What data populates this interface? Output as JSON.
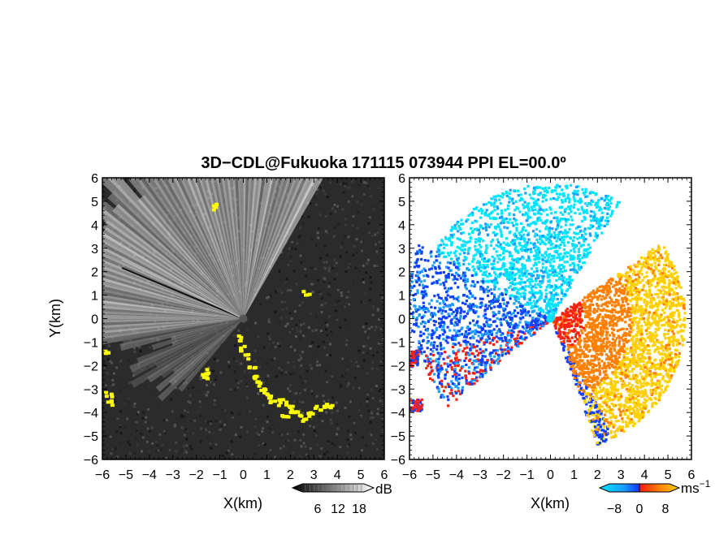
{
  "title": "3D−CDL@Fukuoka 171115 073944 PPI EL=00.0º",
  "chart_data": [
    {
      "type": "heatmap",
      "panel": "reflectivity",
      "xlabel": "X(km)",
      "ylabel": "Y(km)",
      "xlim": [
        -6,
        6
      ],
      "ylim": [
        -6,
        6
      ],
      "xticks": [
        "−6",
        "−5",
        "−4",
        "−3",
        "−2",
        "−1",
        "0",
        "1",
        "2",
        "3",
        "4",
        "5",
        "6"
      ],
      "yticks": [
        "6",
        "5",
        "4",
        "3",
        "2",
        "1",
        "0",
        "−1",
        "−2",
        "−3",
        "−4",
        "−5",
        "−6"
      ],
      "background_color": "#2b2b2b",
      "beam_color": "#e6e6e6",
      "highlight_color": "#ffff00",
      "colorbar": {
        "unit": "dB",
        "ticks": [
          "6",
          "12",
          "18"
        ]
      }
    },
    {
      "type": "heatmap",
      "panel": "doppler_velocity",
      "xlabel": "X(km)",
      "xlim": [
        -6,
        6
      ],
      "ylim": [
        -6,
        6
      ],
      "xticks": [
        "−6",
        "−5",
        "−4",
        "−3",
        "−2",
        "−1",
        "0",
        "1",
        "2",
        "3",
        "4",
        "5",
        "6"
      ],
      "yticks": [
        "6",
        "5",
        "4",
        "3",
        "2",
        "1",
        "0",
        "−1",
        "−2",
        "−3",
        "−4",
        "−5",
        "−6"
      ],
      "approach_colors": [
        "#00e5ff",
        "#1a9fff",
        "#1040ff"
      ],
      "recede_colors": [
        "#ff2010",
        "#ff8000",
        "#ffd000"
      ],
      "colorbar": {
        "unit": "ms",
        "unit_exponent": "−1",
        "ticks": [
          "−8",
          "0",
          "8"
        ]
      }
    }
  ]
}
